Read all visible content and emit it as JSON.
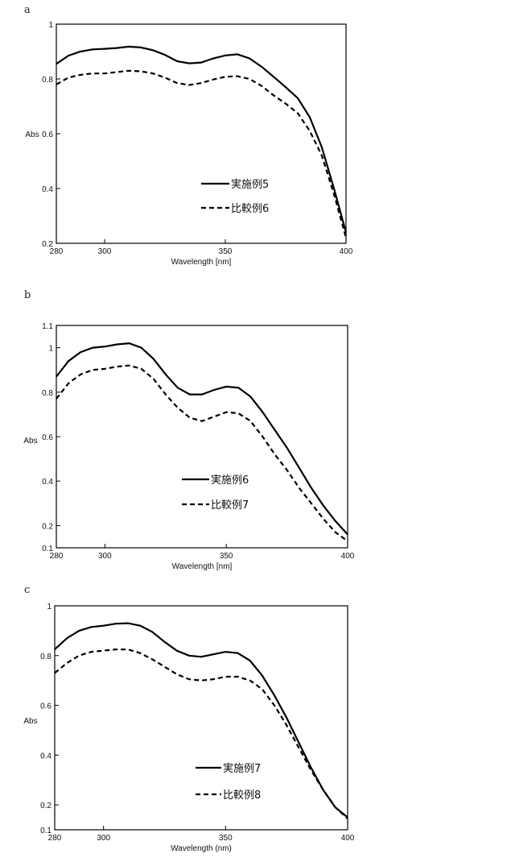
{
  "chart_data": [
    {
      "type": "line",
      "panel_label": "a",
      "title": "",
      "xlabel": "Wavelength [nm]",
      "ylabel": "Abs",
      "xlim": [
        280,
        400
      ],
      "ylim": [
        0.2,
        1
      ],
      "xticks": [
        280,
        300,
        350,
        400
      ],
      "yticks": [
        0.2,
        0.4,
        0.6,
        0.8,
        1
      ],
      "ytick_labels": [
        "0.2",
        "0.4",
        "0.6",
        "0.8",
        "1"
      ],
      "grid": false,
      "legend_position": "center-right",
      "series": [
        {
          "name": "実施例5",
          "style": "solid",
          "x": [
            280,
            285,
            290,
            295,
            300,
            305,
            310,
            315,
            320,
            325,
            330,
            335,
            340,
            345,
            350,
            355,
            360,
            365,
            370,
            375,
            380,
            385,
            390,
            395,
            400
          ],
          "y": [
            0.855,
            0.885,
            0.9,
            0.908,
            0.91,
            0.913,
            0.918,
            0.915,
            0.905,
            0.888,
            0.865,
            0.857,
            0.86,
            0.875,
            0.886,
            0.89,
            0.875,
            0.845,
            0.808,
            0.77,
            0.73,
            0.66,
            0.55,
            0.4,
            0.24
          ]
        },
        {
          "name": "比較例6",
          "style": "dashed",
          "x": [
            280,
            285,
            290,
            295,
            300,
            305,
            310,
            315,
            320,
            325,
            330,
            335,
            340,
            345,
            350,
            355,
            360,
            365,
            370,
            375,
            380,
            385,
            390,
            395,
            400
          ],
          "y": [
            0.78,
            0.805,
            0.815,
            0.82,
            0.82,
            0.825,
            0.83,
            0.828,
            0.82,
            0.805,
            0.785,
            0.778,
            0.785,
            0.798,
            0.808,
            0.81,
            0.8,
            0.775,
            0.74,
            0.71,
            0.675,
            0.61,
            0.52,
            0.38,
            0.22
          ]
        }
      ]
    },
    {
      "type": "line",
      "panel_label": "b",
      "title": "",
      "xlabel": "Wavelength [nm]",
      "ylabel": "Abs",
      "xlim": [
        280,
        400
      ],
      "ylim": [
        0.1,
        1.1
      ],
      "xticks": [
        280,
        300,
        350,
        400
      ],
      "yticks": [
        0.1,
        0.2,
        0.4,
        0.6,
        0.8,
        1,
        1.1
      ],
      "ytick_labels": [
        "0.1",
        "0.2",
        "0.4",
        "0.6",
        "0.8",
        "1",
        "1.1"
      ],
      "grid": false,
      "legend_position": "lower-center",
      "series": [
        {
          "name": "実施例6",
          "style": "solid",
          "x": [
            280,
            285,
            290,
            295,
            300,
            305,
            310,
            315,
            320,
            325,
            330,
            335,
            340,
            345,
            350,
            355,
            360,
            365,
            370,
            375,
            380,
            385,
            390,
            395,
            400
          ],
          "y": [
            0.87,
            0.94,
            0.98,
            1.0,
            1.005,
            1.015,
            1.02,
            1.0,
            0.95,
            0.88,
            0.82,
            0.79,
            0.79,
            0.81,
            0.825,
            0.82,
            0.78,
            0.71,
            0.63,
            0.55,
            0.46,
            0.37,
            0.29,
            0.22,
            0.16
          ]
        },
        {
          "name": "比較例7",
          "style": "dashed",
          "x": [
            280,
            285,
            290,
            295,
            300,
            305,
            310,
            315,
            320,
            325,
            330,
            335,
            340,
            345,
            350,
            355,
            360,
            365,
            370,
            375,
            380,
            385,
            390,
            395,
            400
          ],
          "y": [
            0.77,
            0.84,
            0.88,
            0.9,
            0.905,
            0.915,
            0.92,
            0.905,
            0.86,
            0.79,
            0.73,
            0.685,
            0.67,
            0.69,
            0.71,
            0.705,
            0.67,
            0.6,
            0.52,
            0.45,
            0.37,
            0.3,
            0.23,
            0.17,
            0.13
          ]
        }
      ]
    },
    {
      "type": "line",
      "panel_label": "c",
      "title": "",
      "xlabel": "Wavelength (nm)",
      "ylabel": "Abs",
      "xlim": [
        280,
        400
      ],
      "ylim": [
        0.1,
        1
      ],
      "xticks": [
        280,
        300,
        350,
        400
      ],
      "yticks": [
        0.1,
        0.2,
        0.4,
        0.6,
        0.8,
        1
      ],
      "ytick_labels": [
        "0.1",
        "0.2",
        "0.4",
        "0.6",
        "0.8",
        "1"
      ],
      "grid": false,
      "legend_position": "lower-center",
      "series": [
        {
          "name": "実施例7",
          "style": "solid",
          "x": [
            280,
            285,
            290,
            295,
            300,
            305,
            310,
            315,
            320,
            325,
            330,
            335,
            340,
            345,
            350,
            355,
            360,
            365,
            370,
            375,
            380,
            385,
            390,
            395,
            400
          ],
          "y": [
            0.825,
            0.87,
            0.9,
            0.915,
            0.92,
            0.928,
            0.93,
            0.92,
            0.895,
            0.855,
            0.82,
            0.8,
            0.795,
            0.805,
            0.815,
            0.81,
            0.78,
            0.72,
            0.64,
            0.55,
            0.45,
            0.35,
            0.26,
            0.19,
            0.15
          ]
        },
        {
          "name": "比較例8",
          "style": "dashed",
          "x": [
            280,
            285,
            290,
            295,
            300,
            305,
            310,
            315,
            320,
            325,
            330,
            335,
            340,
            345,
            350,
            355,
            360,
            365,
            370,
            375,
            380,
            385,
            390,
            395,
            400
          ],
          "y": [
            0.73,
            0.77,
            0.8,
            0.815,
            0.82,
            0.825,
            0.825,
            0.81,
            0.785,
            0.755,
            0.725,
            0.705,
            0.7,
            0.705,
            0.715,
            0.715,
            0.7,
            0.665,
            0.6,
            0.52,
            0.43,
            0.34,
            0.26,
            0.19,
            0.145
          ]
        }
      ]
    }
  ]
}
